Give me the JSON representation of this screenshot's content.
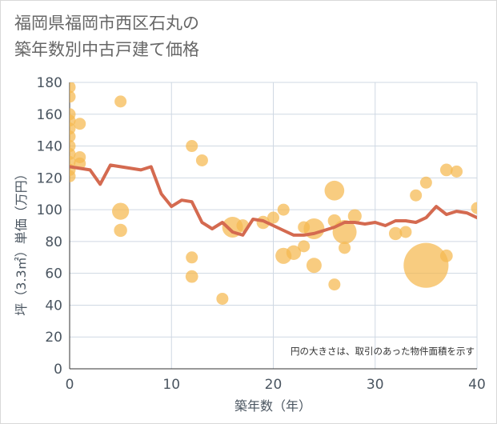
{
  "chart_data": {
    "type": "scatter",
    "title_lines": [
      "福岡県福岡市西区石丸の",
      "築年数別中古戸建て価格"
    ],
    "xlabel": "築年数（年）",
    "ylabel": "坪（3.3㎡）単価（万円）",
    "xlim": [
      0,
      40
    ],
    "ylim": [
      0,
      180
    ],
    "x_ticks": [
      0,
      10,
      20,
      30,
      40
    ],
    "y_ticks": [
      0,
      20,
      40,
      60,
      80,
      100,
      120,
      140,
      160,
      180
    ],
    "note": "円の大きさは、取引のあった物件面積を示す",
    "colors": {
      "bubble": "#f5b94f",
      "line": "#d46a50",
      "grid": "#cfd8e3"
    },
    "points": [
      {
        "x": 0,
        "y": 177,
        "s": 1
      },
      {
        "x": 0,
        "y": 171,
        "s": 1
      },
      {
        "x": 0,
        "y": 160,
        "s": 1
      },
      {
        "x": 0,
        "y": 156,
        "s": 1
      },
      {
        "x": 0,
        "y": 151,
        "s": 1
      },
      {
        "x": 0,
        "y": 146,
        "s": 1
      },
      {
        "x": 0,
        "y": 140,
        "s": 1
      },
      {
        "x": 0,
        "y": 135,
        "s": 1
      },
      {
        "x": 0,
        "y": 130,
        "s": 1
      },
      {
        "x": 0,
        "y": 125,
        "s": 1
      },
      {
        "x": 0,
        "y": 121,
        "s": 1
      },
      {
        "x": 1,
        "y": 154,
        "s": 1
      },
      {
        "x": 1,
        "y": 133,
        "s": 1
      },
      {
        "x": 1,
        "y": 129,
        "s": 1
      },
      {
        "x": 5,
        "y": 168,
        "s": 1
      },
      {
        "x": 5,
        "y": 99,
        "s": 2
      },
      {
        "x": 5,
        "y": 87,
        "s": 1.2
      },
      {
        "x": 12,
        "y": 140,
        "s": 1
      },
      {
        "x": 12,
        "y": 70,
        "s": 1
      },
      {
        "x": 12,
        "y": 58,
        "s": 1.1
      },
      {
        "x": 13,
        "y": 131,
        "s": 1
      },
      {
        "x": 15,
        "y": 44,
        "s": 1
      },
      {
        "x": 16,
        "y": 89,
        "s": 3
      },
      {
        "x": 17,
        "y": 90,
        "s": 1.1
      },
      {
        "x": 19,
        "y": 92,
        "s": 1.2
      },
      {
        "x": 20,
        "y": 95,
        "s": 1
      },
      {
        "x": 21,
        "y": 100,
        "s": 1
      },
      {
        "x": 21,
        "y": 71,
        "s": 1.8
      },
      {
        "x": 22,
        "y": 73,
        "s": 1.5
      },
      {
        "x": 23,
        "y": 89,
        "s": 1
      },
      {
        "x": 23,
        "y": 77,
        "s": 1
      },
      {
        "x": 24,
        "y": 88,
        "s": 3
      },
      {
        "x": 24,
        "y": 65,
        "s": 1.6
      },
      {
        "x": 26,
        "y": 112,
        "s": 2.7
      },
      {
        "x": 26,
        "y": 93,
        "s": 1.2
      },
      {
        "x": 26,
        "y": 53,
        "s": 1
      },
      {
        "x": 27,
        "y": 86,
        "s": 4
      },
      {
        "x": 27,
        "y": 76,
        "s": 1
      },
      {
        "x": 28,
        "y": 96,
        "s": 1.3
      },
      {
        "x": 32,
        "y": 85,
        "s": 1.2
      },
      {
        "x": 33,
        "y": 86,
        "s": 1
      },
      {
        "x": 34,
        "y": 109,
        "s": 1
      },
      {
        "x": 35,
        "y": 117,
        "s": 1
      },
      {
        "x": 35,
        "y": 65,
        "s": 14
      },
      {
        "x": 37,
        "y": 125,
        "s": 1.1
      },
      {
        "x": 37,
        "y": 71,
        "s": 1.1
      },
      {
        "x": 38,
        "y": 124,
        "s": 1
      },
      {
        "x": 40,
        "y": 101,
        "s": 1
      }
    ],
    "trend": {
      "x": [
        0,
        1,
        2,
        3,
        4,
        5,
        6,
        7,
        8,
        9,
        10,
        11,
        12,
        13,
        14,
        15,
        16,
        17,
        18,
        19,
        20,
        21,
        22,
        23,
        24,
        25,
        26,
        27,
        28,
        29,
        30,
        31,
        32,
        33,
        34,
        35,
        36,
        37,
        38,
        39,
        40
      ],
      "y": [
        127,
        126,
        125,
        116,
        128,
        127,
        126,
        125,
        127,
        110,
        102,
        106,
        105,
        92,
        88,
        92,
        86,
        84,
        94,
        93,
        90,
        87,
        84,
        84,
        85,
        87,
        89,
        92,
        92,
        91,
        92,
        90,
        93,
        93,
        92,
        95,
        102,
        97,
        99,
        98,
        95
      ]
    }
  }
}
